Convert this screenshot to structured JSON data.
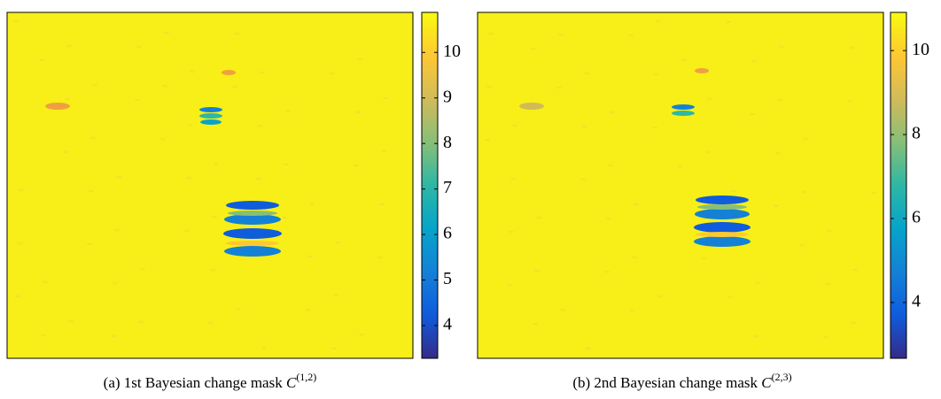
{
  "chart_data": [
    {
      "type": "heatmap",
      "caption": "(a) 1st Bayesian change mask",
      "symbol": "C",
      "superscript": "(1,2)",
      "clim": [
        3.28,
        10.88
      ],
      "cticks": [
        4,
        5,
        6,
        7,
        8,
        9,
        10
      ],
      "colormap": [
        "#352a87",
        "#0f5cdd",
        "#1481d6",
        "#06a4ca",
        "#2eb7a4",
        "#87bf77",
        "#d1bb59",
        "#fec832",
        "#f9fb0e"
      ]
    },
    {
      "type": "heatmap",
      "caption": "(b) 2nd Bayesian change mask",
      "symbol": "C",
      "superscript": "(2,3)",
      "clim": [
        2.67,
        10.91
      ],
      "cticks": [
        4,
        6,
        8,
        10
      ],
      "colormap": [
        "#352a87",
        "#0f5cdd",
        "#1481d6",
        "#06a4ca",
        "#2eb7a4",
        "#87bf77",
        "#d1bb59",
        "#fec832",
        "#f9fb0e"
      ]
    }
  ]
}
